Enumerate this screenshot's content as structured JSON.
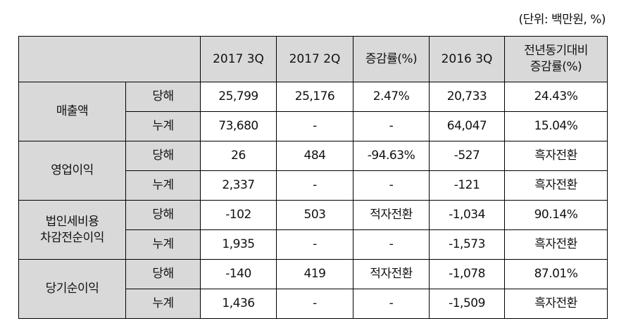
{
  "unit_note": "(단위: 백만원, %)",
  "header": {
    "col_2017_3q": "2017 3Q",
    "col_2017_2q": "2017 2Q",
    "col_change_qoq": "증감률(%)",
    "col_2016_3q": "2016 3Q",
    "col_change_yoy_line1": "전년동기대비",
    "col_change_yoy_line2": "증감률(%)"
  },
  "groups": [
    {
      "label_lines": [
        "매출액"
      ],
      "rows": [
        {
          "type": "당해",
          "v2017_3q": "25,799",
          "v2017_2q": "25,176",
          "qoq": "2.47%",
          "v2016_3q": "20,733",
          "yoy": "24.43%"
        },
        {
          "type": "누계",
          "v2017_3q": "73,680",
          "v2017_2q": "-",
          "qoq": "-",
          "v2016_3q": "64,047",
          "yoy": "15.04%"
        }
      ]
    },
    {
      "label_lines": [
        "영업이익"
      ],
      "rows": [
        {
          "type": "당해",
          "v2017_3q": "26",
          "v2017_2q": "484",
          "qoq": "-94.63%",
          "v2016_3q": "-527",
          "yoy": "흑자전환"
        },
        {
          "type": "누계",
          "v2017_3q": "2,337",
          "v2017_2q": "-",
          "qoq": "-",
          "v2016_3q": "-121",
          "yoy": "흑자전환"
        }
      ]
    },
    {
      "label_lines": [
        "법인세비용",
        "차감전순이익"
      ],
      "rows": [
        {
          "type": "당해",
          "v2017_3q": "-102",
          "v2017_2q": "503",
          "qoq": "적자전환",
          "v2016_3q": "-1,034",
          "yoy": "90.14%"
        },
        {
          "type": "누계",
          "v2017_3q": "1,935",
          "v2017_2q": "-",
          "qoq": "-",
          "v2016_3q": "-1,573",
          "yoy": "흑자전환"
        }
      ]
    },
    {
      "label_lines": [
        "당기순이익"
      ],
      "rows": [
        {
          "type": "당해",
          "v2017_3q": "-140",
          "v2017_2q": "419",
          "qoq": "적자전환",
          "v2016_3q": "-1,078",
          "yoy": "87.01%"
        },
        {
          "type": "누계",
          "v2017_3q": "1,436",
          "v2017_2q": "-",
          "qoq": "-",
          "v2016_3q": "-1,509",
          "yoy": "흑자전환"
        }
      ]
    }
  ]
}
